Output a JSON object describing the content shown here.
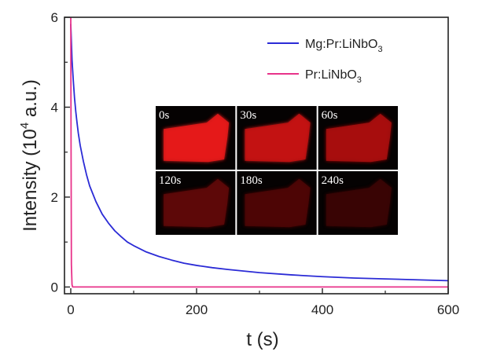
{
  "chart_data": {
    "type": "line",
    "title": "",
    "xlabel": "t (s)",
    "ylabel": {
      "main": "Intensity (10",
      "exp": "4",
      "unit": " a.u.)"
    },
    "xlim": [
      -10,
      600
    ],
    "ylim": [
      -0.15,
      6.0
    ],
    "xticks": [
      0,
      200,
      400,
      600
    ],
    "yticks": [
      0,
      2,
      4,
      6
    ],
    "grid": false,
    "legend_position": "top-right",
    "series": [
      {
        "name": {
          "main": "Mg:Pr:LiNbO",
          "sub": "3"
        },
        "color": "#2b2bd6",
        "x": [
          0,
          2,
          4,
          6,
          8,
          10,
          12,
          15,
          20,
          25,
          30,
          40,
          50,
          60,
          70,
          80,
          90,
          100,
          120,
          140,
          160,
          180,
          200,
          225,
          250,
          275,
          300,
          350,
          400,
          450,
          500,
          550,
          600
        ],
        "y": [
          5.85,
          5.05,
          4.6,
          4.2,
          3.9,
          3.65,
          3.42,
          3.15,
          2.8,
          2.5,
          2.25,
          1.9,
          1.62,
          1.42,
          1.25,
          1.12,
          1.0,
          0.92,
          0.78,
          0.68,
          0.6,
          0.53,
          0.48,
          0.43,
          0.39,
          0.355,
          0.32,
          0.27,
          0.23,
          0.2,
          0.18,
          0.16,
          0.14
        ]
      },
      {
        "name": {
          "main": "Pr:LiNbO",
          "sub": "3"
        },
        "color": "#e8338a",
        "x": [
          0,
          0.5,
          1,
          2,
          3,
          600
        ],
        "y": [
          6.0,
          3.0,
          0.5,
          0.05,
          0.0,
          0.0
        ]
      }
    ],
    "inset": {
      "labels": [
        "0s",
        "30s",
        "60s",
        "120s",
        "180s",
        "240s"
      ],
      "glow_colors": [
        "#e61a1a",
        "#c41212",
        "#a80e0e",
        "#5e0808",
        "#4e0606",
        "#3a0505"
      ]
    }
  }
}
